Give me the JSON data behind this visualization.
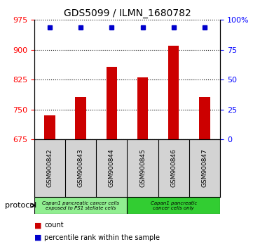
{
  "title": "GDS5099 / ILMN_1680782",
  "samples": [
    "GSM900842",
    "GSM900843",
    "GSM900844",
    "GSM900845",
    "GSM900846",
    "GSM900847"
  ],
  "counts": [
    735,
    782,
    858,
    830,
    910,
    782
  ],
  "percentile_ranks": [
    94,
    94,
    94,
    94,
    94,
    94
  ],
  "ylim_left": [
    675,
    975
  ],
  "yticks_left": [
    675,
    750,
    825,
    900,
    975
  ],
  "ylim_right": [
    0,
    100
  ],
  "yticks_right": [
    0,
    25,
    50,
    75,
    100
  ],
  "bar_color": "#cc0000",
  "dot_color": "#0000cc",
  "bg_plot": "#ffffff",
  "bg_sample_area": "#d3d3d3",
  "group1_label": "Capan1 pancreatic cancer cells\nexposed to PS1 stellate cells",
  "group1_color": "#90EE90",
  "group2_label": "Capan1 pancreatic\ncancer cells only",
  "group2_color": "#32CD32",
  "legend_items": [
    {
      "color": "#cc0000",
      "label": "count"
    },
    {
      "color": "#0000cc",
      "label": "percentile rank within the sample"
    }
  ],
  "protocol_label": "protocol"
}
